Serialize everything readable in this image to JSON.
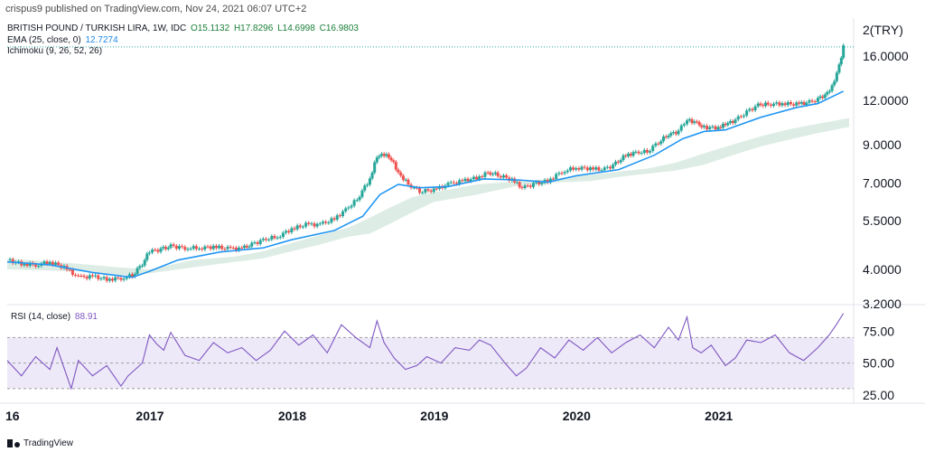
{
  "header": {
    "published_note": "crispus9 published on TradingView.com, Nov 24, 2021 06:07 UTC+2"
  },
  "legend": {
    "symbol_line": "BRITISH POUND / TURKISH LIRA, 1W, IDC",
    "ohlc": {
      "o": "O15.1132",
      "h": "H17.8296",
      "l": "L14.6998",
      "c": "C16.9803"
    },
    "ema_label": "EMA (25, close, 0)",
    "ema_value": "12.7274",
    "ichimoku_label": "Ichimoku (9, 26, 52, 26)",
    "rsi_label": "RSI (14, close)",
    "rsi_value": "88.91"
  },
  "currency_badge": "TRY",
  "footer": {
    "brand": "TradingView"
  },
  "colors": {
    "up": "#26a69a",
    "down": "#ef5350",
    "ema": "#2196f3",
    "rsi": "#7e57c2",
    "cloud_green": "#d9ebe2",
    "cloud_red": "#f7d9d9",
    "rsi_band": "#eee9f8"
  },
  "chart_data": [
    {
      "type": "candlestick",
      "title": "BRITISH POUND / TURKISH LIRA, 1W, IDC",
      "ylabel": "TRY",
      "y_scale": "log",
      "ylim": [
        3.2,
        20
      ],
      "xlim": [
        2016.0,
        2021.92
      ],
      "y_ticks": [
        "16.0000",
        "12.0000",
        "9.0000",
        "7.0000",
        "5.5000",
        "4.0000",
        "3.2000"
      ],
      "y_tick_values": [
        16,
        12,
        9,
        7,
        5.5,
        4,
        3.2
      ],
      "x_ticks": [
        "16",
        "2017",
        "2018",
        "2019",
        "2020",
        "2021"
      ],
      "x_tick_values": [
        2016.0,
        2017.0,
        2018.0,
        2019.0,
        2020.0,
        2021.0
      ],
      "price_points": [
        [
          2016.0,
          4.25
        ],
        [
          2016.1,
          4.15
        ],
        [
          2016.2,
          4.12
        ],
        [
          2016.3,
          4.2
        ],
        [
          2016.4,
          4.05
        ],
        [
          2016.5,
          3.8
        ],
        [
          2016.6,
          3.82
        ],
        [
          2016.7,
          3.75
        ],
        [
          2016.8,
          3.78
        ],
        [
          2016.88,
          3.85
        ],
        [
          2016.95,
          4.15
        ],
        [
          2017.0,
          4.5
        ],
        [
          2017.08,
          4.55
        ],
        [
          2017.15,
          4.65
        ],
        [
          2017.25,
          4.6
        ],
        [
          2017.35,
          4.6
        ],
        [
          2017.45,
          4.63
        ],
        [
          2017.55,
          4.58
        ],
        [
          2017.65,
          4.58
        ],
        [
          2017.72,
          4.7
        ],
        [
          2017.8,
          4.85
        ],
        [
          2017.9,
          4.95
        ],
        [
          2018.0,
          5.2
        ],
        [
          2018.1,
          5.35
        ],
        [
          2018.2,
          5.35
        ],
        [
          2018.3,
          5.55
        ],
        [
          2018.38,
          5.9
        ],
        [
          2018.46,
          6.3
        ],
        [
          2018.55,
          7.2
        ],
        [
          2018.6,
          8.3
        ],
        [
          2018.65,
          8.45
        ],
        [
          2018.7,
          8.2
        ],
        [
          2018.75,
          7.5
        ],
        [
          2018.82,
          6.95
        ],
        [
          2018.9,
          6.65
        ],
        [
          2019.0,
          6.7
        ],
        [
          2019.1,
          6.95
        ],
        [
          2019.2,
          7.1
        ],
        [
          2019.3,
          7.25
        ],
        [
          2019.38,
          7.5
        ],
        [
          2019.45,
          7.4
        ],
        [
          2019.55,
          7.15
        ],
        [
          2019.62,
          6.8
        ],
        [
          2019.7,
          6.95
        ],
        [
          2019.8,
          7.1
        ],
        [
          2019.9,
          7.55
        ],
        [
          2020.0,
          7.75
        ],
        [
          2020.1,
          7.7
        ],
        [
          2020.18,
          7.65
        ],
        [
          2020.26,
          7.85
        ],
        [
          2020.35,
          8.4
        ],
        [
          2020.42,
          8.55
        ],
        [
          2020.5,
          8.6
        ],
        [
          2020.58,
          9.15
        ],
        [
          2020.65,
          9.6
        ],
        [
          2020.72,
          9.8
        ],
        [
          2020.78,
          10.6
        ],
        [
          2020.85,
          10.35
        ],
        [
          2020.9,
          10.05
        ],
        [
          2021.0,
          10.05
        ],
        [
          2021.05,
          10.25
        ],
        [
          2021.12,
          10.55
        ],
        [
          2021.2,
          11.1
        ],
        [
          2021.28,
          11.65
        ],
        [
          2021.35,
          11.7
        ],
        [
          2021.45,
          11.75
        ],
        [
          2021.55,
          11.7
        ],
        [
          2021.62,
          11.8
        ],
        [
          2021.7,
          12.05
        ],
        [
          2021.75,
          12.45
        ],
        [
          2021.8,
          13.1
        ],
        [
          2021.85,
          15.0
        ],
        [
          2021.88,
          16.98
        ]
      ],
      "ema_25": [
        [
          2016.0,
          4.2
        ],
        [
          2016.3,
          4.12
        ],
        [
          2016.6,
          3.92
        ],
        [
          2016.88,
          3.8
        ],
        [
          2017.0,
          3.95
        ],
        [
          2017.2,
          4.25
        ],
        [
          2017.5,
          4.48
        ],
        [
          2017.8,
          4.6
        ],
        [
          2018.0,
          4.85
        ],
        [
          2018.3,
          5.15
        ],
        [
          2018.5,
          5.65
        ],
        [
          2018.62,
          6.5
        ],
        [
          2018.75,
          6.95
        ],
        [
          2018.9,
          6.8
        ],
        [
          2019.1,
          6.85
        ],
        [
          2019.35,
          7.2
        ],
        [
          2019.6,
          7.15
        ],
        [
          2019.8,
          7.05
        ],
        [
          2020.0,
          7.35
        ],
        [
          2020.3,
          7.65
        ],
        [
          2020.55,
          8.4
        ],
        [
          2020.75,
          9.35
        ],
        [
          2020.9,
          9.8
        ],
        [
          2021.05,
          9.9
        ],
        [
          2021.3,
          10.75
        ],
        [
          2021.55,
          11.45
        ],
        [
          2021.7,
          11.75
        ],
        [
          2021.88,
          12.73
        ]
      ],
      "ichimoku_cloud": [
        [
          2016.0,
          4.3,
          4.0
        ],
        [
          2016.5,
          4.15,
          3.95
        ],
        [
          2016.8,
          4.05,
          3.85
        ],
        [
          2017.0,
          4.0,
          3.9
        ],
        [
          2017.3,
          4.25,
          4.05
        ],
        [
          2017.6,
          4.35,
          4.2
        ],
        [
          2017.8,
          4.5,
          4.3
        ],
        [
          2018.0,
          4.75,
          4.5
        ],
        [
          2018.2,
          5.0,
          4.7
        ],
        [
          2018.4,
          5.25,
          4.95
        ],
        [
          2018.55,
          5.6,
          5.05
        ],
        [
          2018.7,
          6.0,
          5.4
        ],
        [
          2018.85,
          6.4,
          5.8
        ],
        [
          2019.0,
          6.6,
          6.2
        ],
        [
          2019.3,
          6.95,
          6.5
        ],
        [
          2019.6,
          7.1,
          6.9
        ],
        [
          2019.9,
          7.25,
          7.05
        ],
        [
          2020.1,
          7.4,
          7.1
        ],
        [
          2020.3,
          7.55,
          7.3
        ],
        [
          2020.5,
          7.7,
          7.45
        ],
        [
          2020.7,
          8.0,
          7.6
        ],
        [
          2020.9,
          8.5,
          7.9
        ],
        [
          2021.1,
          9.0,
          8.4
        ],
        [
          2021.3,
          9.5,
          8.9
        ],
        [
          2021.5,
          9.95,
          9.3
        ],
        [
          2021.7,
          10.3,
          9.7
        ],
        [
          2021.92,
          10.7,
          10.1
        ]
      ]
    },
    {
      "type": "line",
      "title": "RSI (14, close)",
      "ylim": [
        20,
        95
      ],
      "y_ticks": [
        "75.00",
        "50.00",
        "25.00"
      ],
      "y_tick_values": [
        75,
        50,
        25
      ],
      "bands": [
        70,
        50,
        30
      ],
      "x": [
        2016.0,
        2016.1,
        2016.2,
        2016.3,
        2016.35,
        2016.45,
        2016.5,
        2016.6,
        2016.7,
        2016.8,
        2016.85,
        2016.95,
        2017.0,
        2017.05,
        2017.1,
        2017.15,
        2017.25,
        2017.35,
        2017.45,
        2017.55,
        2017.65,
        2017.75,
        2017.85,
        2017.95,
        2018.05,
        2018.15,
        2018.25,
        2018.35,
        2018.45,
        2018.55,
        2018.6,
        2018.65,
        2018.72,
        2018.8,
        2018.88,
        2018.95,
        2019.05,
        2019.15,
        2019.25,
        2019.32,
        2019.4,
        2019.5,
        2019.58,
        2019.65,
        2019.75,
        2019.85,
        2019.95,
        2020.05,
        2020.15,
        2020.25,
        2020.35,
        2020.45,
        2020.55,
        2020.65,
        2020.72,
        2020.78,
        2020.82,
        2020.88,
        2020.95,
        2021.05,
        2021.12,
        2021.2,
        2021.3,
        2021.4,
        2021.5,
        2021.6,
        2021.7,
        2021.78,
        2021.83,
        2021.88
      ],
      "values": [
        52,
        40,
        55,
        45,
        62,
        30,
        52,
        40,
        48,
        32,
        40,
        50,
        72,
        65,
        60,
        74,
        56,
        52,
        66,
        58,
        62,
        52,
        60,
        75,
        64,
        72,
        58,
        80,
        70,
        62,
        83,
        66,
        54,
        45,
        48,
        55,
        50,
        62,
        60,
        68,
        64,
        50,
        40,
        46,
        62,
        54,
        68,
        60,
        70,
        58,
        66,
        72,
        62,
        78,
        68,
        86,
        62,
        58,
        64,
        48,
        54,
        68,
        66,
        72,
        58,
        52,
        62,
        72,
        80,
        88.91
      ]
    }
  ]
}
